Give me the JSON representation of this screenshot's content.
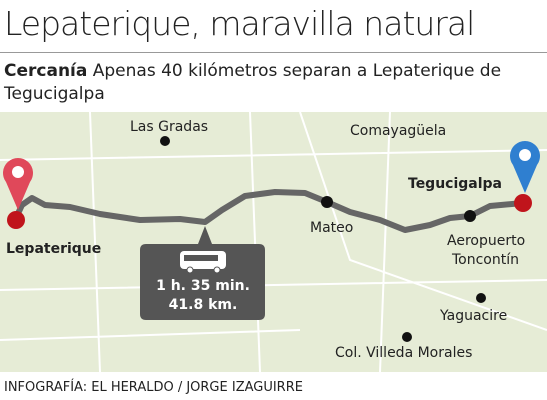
{
  "header": {
    "title": "Lepaterique, maravilla natural",
    "lead": "Cercanía",
    "text": "Apenas 40 kilómetros separan a Lepaterique de Tegucigalpa"
  },
  "map": {
    "origin": "Lepaterique",
    "destination": "Tegucigalpa",
    "places": [
      {
        "label": "Las Gradas"
      },
      {
        "label": "Comayagüela"
      },
      {
        "label": "Mateo"
      },
      {
        "label": [
          "Aeropuerto",
          "Toncontín"
        ]
      },
      {
        "label": "Yaguacire"
      },
      {
        "label": "Col. Villeda Morales"
      }
    ],
    "trip": {
      "duration": "1 h. 35 min.",
      "distance": "41.8 km."
    }
  },
  "footer": {
    "credit": "INFOGRAFÍA: EL HERALDO / JORGE IZAGUIRRE"
  }
}
